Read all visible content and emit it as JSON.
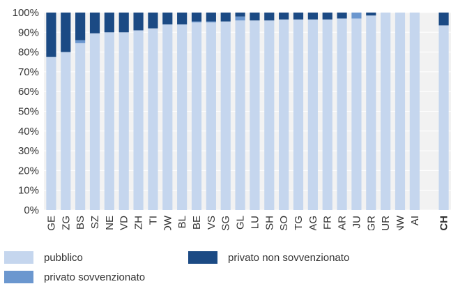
{
  "chart_data": {
    "type": "bar",
    "stacked": true,
    "percent": true,
    "categories": [
      "GE",
      "ZG",
      "BS",
      "SZ",
      "NE",
      "VD",
      "ZH",
      "TI",
      "OW",
      "BL",
      "BE",
      "VS",
      "SG",
      "GL",
      "LU",
      "SH",
      "SO",
      "TG",
      "AG",
      "FR",
      "AR",
      "JU",
      "GR",
      "UR",
      "NW",
      "AI",
      "CH"
    ],
    "highlight_category": "CH",
    "series": [
      {
        "name": "pubblico",
        "color": "#c5d6ee",
        "values": [
          77.5,
          80,
          84.5,
          89.5,
          90,
          90,
          91,
          92,
          94,
          94,
          95,
          95,
          95.5,
          96,
          96,
          96,
          96.5,
          96.5,
          96.5,
          96.5,
          97,
          97,
          98.5,
          100,
          100,
          100,
          93.5
        ]
      },
      {
        "name": "privato sovvenzionato",
        "color": "#6b97cf",
        "values": [
          0,
          0,
          1.5,
          0,
          0,
          0,
          0,
          0,
          0,
          0,
          0.5,
          0.5,
          0,
          2,
          0,
          0,
          0,
          0,
          0,
          0,
          0,
          3,
          0,
          0,
          0,
          0,
          0
        ]
      },
      {
        "name": "privato non sovvenzionato",
        "color": "#1b4a84",
        "values": [
          22.5,
          20,
          14,
          10.5,
          10,
          10,
          9,
          8,
          6,
          6,
          4.5,
          4.5,
          4.5,
          2,
          4,
          4,
          3.5,
          3.5,
          3.5,
          3.5,
          3,
          0,
          1.5,
          0,
          0,
          0,
          6.5
        ]
      }
    ],
    "yticks": [
      "0%",
      "10%",
      "20%",
      "30%",
      "40%",
      "50%",
      "60%",
      "70%",
      "80%",
      "90%",
      "100%"
    ],
    "ylim": [
      0,
      100
    ],
    "grid": true,
    "legend_position": "bottom"
  }
}
